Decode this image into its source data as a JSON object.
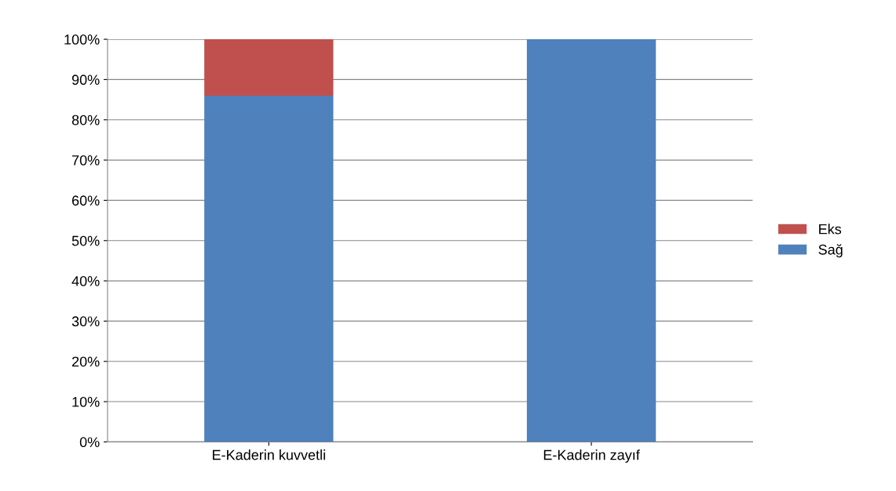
{
  "chart_data": {
    "type": "bar",
    "stacked": true,
    "categories": [
      "E-Kaderin kuvvetli",
      "E-Kaderin zayıf"
    ],
    "series": [
      {
        "name": "Sağ",
        "color": "#4f81bd",
        "values": [
          86,
          100
        ]
      },
      {
        "name": "Eks",
        "color": "#c0504d",
        "values": [
          14,
          0
        ]
      }
    ],
    "ylim": [
      0,
      100
    ],
    "yticks": [
      {
        "value": 0,
        "label": "0%"
      },
      {
        "value": 10,
        "label": "10%"
      },
      {
        "value": 20,
        "label": "20%"
      },
      {
        "value": 30,
        "label": "30%"
      },
      {
        "value": 40,
        "label": "40%"
      },
      {
        "value": 50,
        "label": "50%"
      },
      {
        "value": 60,
        "label": "60%"
      },
      {
        "value": 70,
        "label": "70%"
      },
      {
        "value": 80,
        "label": "80%"
      },
      {
        "value": 90,
        "label": "90%"
      },
      {
        "value": 100,
        "label": "100%"
      }
    ],
    "grid": "y",
    "legend": "right"
  }
}
